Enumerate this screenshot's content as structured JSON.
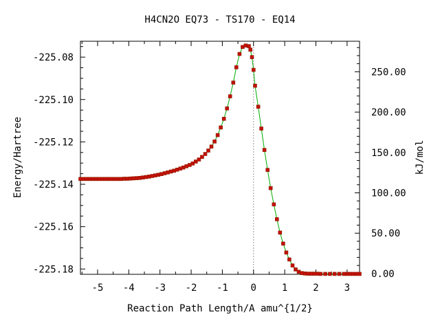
{
  "chart_data": {
    "type": "line",
    "title": "H4CN2O   EQ73 - TS170 - EQ14",
    "xlabel": "Reaction Path Length/A amu^{1/2}",
    "ylabel": "Energy/Hartree",
    "y2label": "kJ/mol",
    "xlim": [
      -5.55,
      3.4
    ],
    "ylim": [
      -225.1825,
      -225.0725
    ],
    "y2lim": [
      -0.95,
      287.8
    ],
    "x_ticks": [
      -5,
      -4,
      -3,
      -2,
      -1,
      0,
      1,
      2,
      3
    ],
    "x_tick_labels": [
      "-5",
      "-4",
      "-3",
      "-2",
      "-1",
      "0",
      "1",
      "2",
      "3"
    ],
    "y_ticks": [
      -225.08,
      -225.1,
      -225.12,
      -225.14,
      -225.16,
      -225.18
    ],
    "y_tick_labels": [
      "-225.08",
      "-225.10",
      "-225.12",
      "-225.14",
      "-225.16",
      "-225.18"
    ],
    "y2_ticks": [
      250,
      200,
      150,
      100,
      50,
      0
    ],
    "y2_tick_labels": [
      "250.00",
      "200.00",
      "150.00",
      "100.00",
      "50.00",
      "0.00"
    ],
    "ts_x": 0,
    "line_color": "#00aa00",
    "marker_color": "#c4100a",
    "x": [
      -5.55,
      -5.45,
      -5.35,
      -5.25,
      -5.15,
      -5.05,
      -4.95,
      -4.85,
      -4.75,
      -4.65,
      -4.55,
      -4.45,
      -4.35,
      -4.25,
      -4.15,
      -4.05,
      -3.95,
      -3.85,
      -3.75,
      -3.65,
      -3.55,
      -3.45,
      -3.35,
      -3.25,
      -3.15,
      -3.05,
      -2.95,
      -2.85,
      -2.75,
      -2.65,
      -2.55,
      -2.45,
      -2.35,
      -2.25,
      -2.15,
      -2.05,
      -1.95,
      -1.85,
      -1.75,
      -1.65,
      -1.55,
      -1.45,
      -1.35,
      -1.25,
      -1.15,
      -1.05,
      -0.95,
      -0.85,
      -0.75,
      -0.65,
      -0.55,
      -0.45,
      -0.35,
      -0.25,
      -0.15,
      -0.1,
      -0.05,
      0.0,
      0.05,
      0.15,
      0.25,
      0.35,
      0.45,
      0.55,
      0.65,
      0.75,
      0.85,
      0.95,
      1.05,
      1.15,
      1.25,
      1.35,
      1.45,
      1.55,
      1.65,
      1.75,
      1.85,
      1.95,
      2.05,
      2.15,
      2.3,
      2.45,
      2.6,
      2.75,
      2.9,
      3.0,
      3.1,
      3.2,
      3.3,
      3.4
    ],
    "y": [
      -225.1375,
      -225.1375,
      -225.1375,
      -225.1375,
      -225.1375,
      -225.1375,
      -225.1375,
      -225.1375,
      -225.1375,
      -225.1375,
      -225.1375,
      -225.1375,
      -225.1375,
      -225.1375,
      -225.1374,
      -225.1374,
      -225.1373,
      -225.1372,
      -225.1371,
      -225.137,
      -225.1368,
      -225.1366,
      -225.1364,
      -225.1361,
      -225.1358,
      -225.1355,
      -225.1352,
      -225.1348,
      -225.1344,
      -225.134,
      -225.1336,
      -225.1331,
      -225.1326,
      -225.1321,
      -225.1315,
      -225.1309,
      -225.1302,
      -225.1293,
      -225.1283,
      -225.1271,
      -225.1257,
      -225.1241,
      -225.1222,
      -225.1198,
      -225.1168,
      -225.1132,
      -225.1091,
      -225.1042,
      -225.0985,
      -225.092,
      -225.0848,
      -225.0785,
      -225.0752,
      -225.0745,
      -225.0748,
      -225.0765,
      -225.08,
      -225.086,
      -225.0935,
      -225.1034,
      -225.1137,
      -225.1238,
      -225.1332,
      -225.1418,
      -225.1495,
      -225.1565,
      -225.1628,
      -225.168,
      -225.1722,
      -225.1755,
      -225.1783,
      -225.1802,
      -225.1813,
      -225.1819,
      -225.1821,
      -225.1822,
      -225.1822,
      -225.1822,
      -225.1822,
      -225.1823,
      -225.1823,
      -225.1823,
      -225.1823,
      -225.1823,
      -225.1823,
      -225.1823,
      -225.1823,
      -225.1823,
      -225.1823,
      -225.1823
    ]
  }
}
